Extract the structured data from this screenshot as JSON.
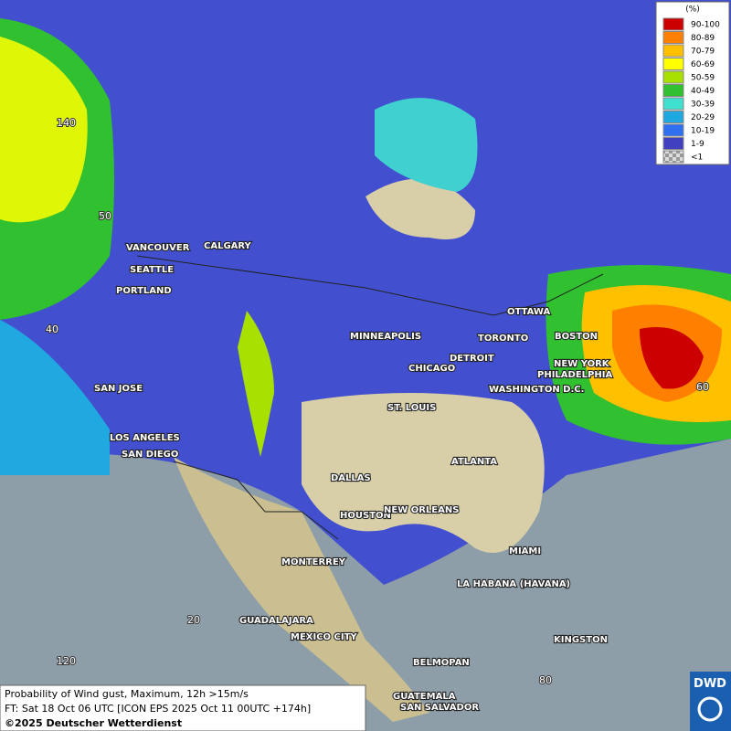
{
  "legend": {
    "title": "(%)",
    "items": [
      {
        "label": "90-100",
        "color": "#cc0000"
      },
      {
        "label": "80-89",
        "color": "#ff8000"
      },
      {
        "label": "70-79",
        "color": "#ffc000"
      },
      {
        "label": "60-69",
        "color": "#ffff00"
      },
      {
        "label": "50-59",
        "color": "#a8e000"
      },
      {
        "label": "40-49",
        "color": "#30c030"
      },
      {
        "label": "30-39",
        "color": "#40e0d0"
      },
      {
        "label": "20-29",
        "color": "#20a8e0"
      },
      {
        "label": "10-19",
        "color": "#3070f0"
      },
      {
        "label": "1-9",
        "color": "#4040c0"
      },
      {
        "label": "<1",
        "color": "checker"
      }
    ]
  },
  "graticule": [
    "140",
    "50",
    "40",
    "20",
    "120",
    "60",
    "80"
  ],
  "cities": [
    "VANCOUVER",
    "CALGARY",
    "SEATTLE",
    "PORTLAND",
    "SAN JOSE",
    "LOS ANGELES",
    "SAN DIEGO",
    "MINNEAPOLIS",
    "CHICAGO",
    "DETROIT",
    "TORONTO",
    "OTTAWA",
    "BOSTON",
    "NEW YORK",
    "PHILADELPHIA",
    "WASHINGTON D.C.",
    "ST. LOUIS",
    "ATLANTA",
    "DALLAS",
    "HOUSTON",
    "NEW ORLEANS",
    "MIAMI",
    "MONTERREY",
    "LA HABANA (HAVANA)",
    "GUADALAJARA",
    "MEXICO CITY",
    "BELMOPAN",
    "KINGSTON",
    "GUATEMALA",
    "SAN SALVADOR"
  ],
  "footer": {
    "line1": "Probability of Wind gust, Maximum, 12h >15m/s",
    "line2": "FT: Sat 18 Oct 06 UTC [ICON EPS 2025 Oct 11 00UTC +174h]",
    "line3": "©2025 Deutscher Wetterdienst"
  },
  "logo": "DWD"
}
